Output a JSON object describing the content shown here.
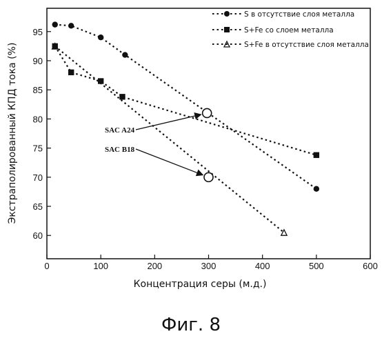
{
  "caption": "Фиг. 8",
  "chart_data": {
    "type": "scatter",
    "title": "",
    "xlabel": "Концентрация серы (м.д.)",
    "ylabel": "Экстраполированный КПД тока (%)",
    "xlim": [
      0,
      600
    ],
    "ylim": [
      56,
      99
    ],
    "xticks": [
      0,
      100,
      200,
      300,
      400,
      500,
      600
    ],
    "yticks": [
      60,
      65,
      70,
      75,
      80,
      85,
      90,
      95
    ],
    "grid": false,
    "legend_position": "top-right",
    "series": [
      {
        "name": "S в отсутствие слоя металла",
        "marker": "circle",
        "line": "dotted",
        "points": [
          [
            15,
            96.2
          ],
          [
            45,
            96.0
          ],
          [
            100,
            94.0
          ],
          [
            145,
            91.0
          ],
          [
            500,
            68.0
          ]
        ]
      },
      {
        "name": "S+Fe со слоем металла",
        "marker": "square",
        "line": "dotted",
        "points": [
          [
            15,
            92.5
          ],
          [
            45,
            88.0
          ],
          [
            100,
            86.5
          ],
          [
            140,
            83.8
          ],
          [
            500,
            73.8
          ]
        ]
      },
      {
        "name": "S+Fe в отсутствие слоя металла",
        "marker": "triangle",
        "line": "dotted",
        "points": [
          [
            15,
            92.5
          ],
          [
            440,
            60.5
          ]
        ]
      }
    ],
    "annotations": [
      {
        "label": "SAC A24",
        "x": 297,
        "y": 81.0
      },
      {
        "label": "SAC B18",
        "x": 300,
        "y": 70.0
      }
    ]
  }
}
